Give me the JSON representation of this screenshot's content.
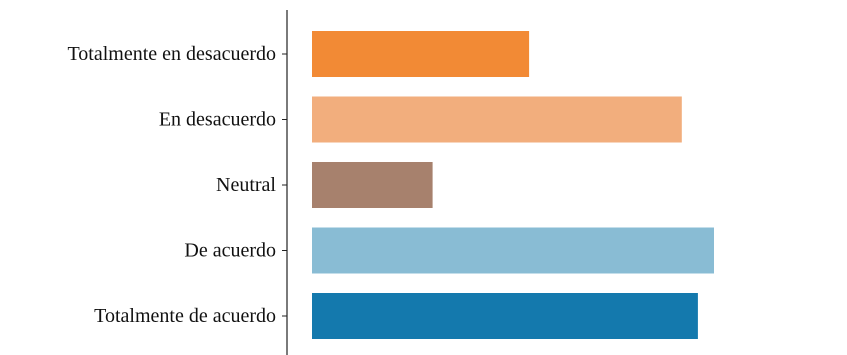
{
  "chart_data": {
    "type": "bar",
    "orientation": "horizontal",
    "title": "",
    "xlabel": "",
    "ylabel": "",
    "categories": [
      "Totalmente en desacuerdo",
      "En desacuerdo",
      "Neutral",
      "De acuerdo",
      "Totalmente de acuerdo"
    ],
    "values": [
      0.54,
      0.92,
      0.3,
      1.0,
      0.96
    ],
    "colors": [
      "#f28a35",
      "#f2ae7d",
      "#a7816d",
      "#89bcd4",
      "#1479ad"
    ],
    "value_axis_visible": false,
    "grid": false,
    "legend": "none"
  }
}
